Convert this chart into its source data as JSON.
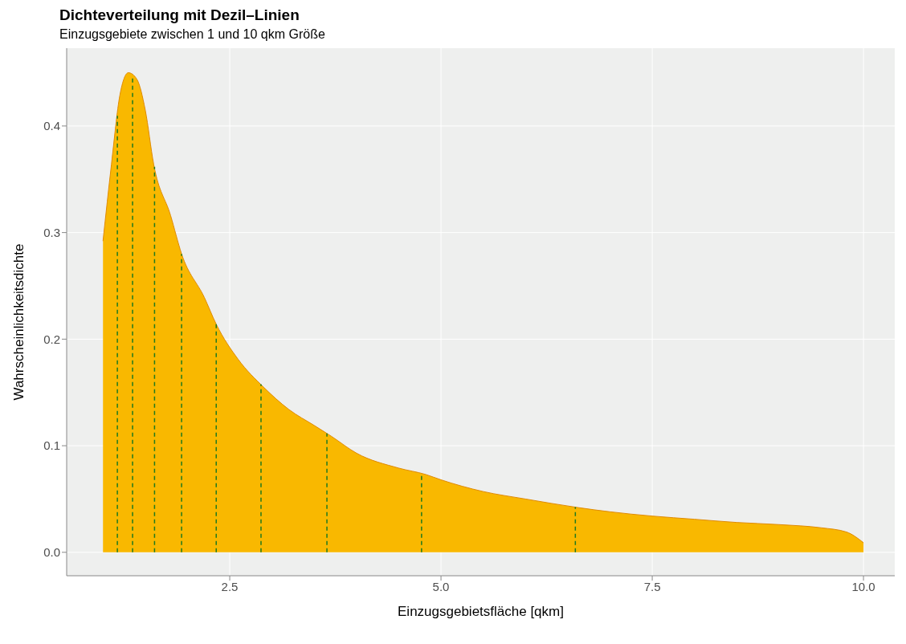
{
  "chart_data": {
    "type": "area",
    "title": "Dichteverteilung mit Dezil–Linien",
    "subtitle": "Einzugsgebiete zwischen 1 und 10 qkm Größe",
    "xlabel": "Einzugsgebietsfläche [qkm]",
    "ylabel": "Wahrscheinlichkeitsdichte",
    "x": [
      1.0,
      1.1,
      1.2,
      1.3,
      1.4,
      1.5,
      1.6,
      1.8,
      1.93,
      2.2,
      2.34,
      2.6,
      2.9,
      3.2,
      3.5,
      3.7,
      4.0,
      4.5,
      4.82,
      5.0,
      5.5,
      6.0,
      6.62,
      7.0,
      7.5,
      8.0,
      8.5,
      9.0,
      9.5,
      9.8,
      10.0
    ],
    "series": [
      {
        "color": "#f9b800",
        "values": [
          0.292,
          0.364,
          0.429,
          0.45,
          0.444,
          0.415,
          0.364,
          0.316,
          0.28,
          0.239,
          0.214,
          0.181,
          0.155,
          0.134,
          0.119,
          0.109,
          0.093,
          0.079,
          0.073,
          0.068,
          0.057,
          0.05,
          0.042,
          0.038,
          0.034,
          0.031,
          0.028,
          0.026,
          0.023,
          0.019,
          0.009
        ]
      }
    ],
    "xlim": [
      0.57,
      10.37
    ],
    "ylim": [
      -0.022,
      0.473
    ],
    "xticks": [
      {
        "value": 2.5,
        "label": "2.5"
      },
      {
        "value": 5,
        "label": "5.0"
      },
      {
        "value": 7.5,
        "label": "7.5"
      },
      {
        "value": 10,
        "label": "10.0"
      }
    ],
    "yticks": [
      {
        "value": 0,
        "label": "0.0"
      },
      {
        "value": 0.1,
        "label": "0.1"
      },
      {
        "value": 0.2,
        "label": "0.2"
      },
      {
        "value": 0.3,
        "label": "0.3"
      },
      {
        "value": 0.4,
        "label": "0.4"
      }
    ],
    "ref_lines": [
      {
        "axis": "x",
        "value": 1.17,
        "color": "#1f7a1f",
        "line_style": "dashed"
      },
      {
        "axis": "x",
        "value": 1.35,
        "color": "#1f7a1f",
        "line_style": "dashed"
      },
      {
        "axis": "x",
        "value": 1.61,
        "color": "#1f7a1f",
        "line_style": "dashed"
      },
      {
        "axis": "x",
        "value": 1.93,
        "color": "#1f7a1f",
        "line_style": "dashed"
      },
      {
        "axis": "x",
        "value": 2.34,
        "color": "#1f7a1f",
        "line_style": "dashed"
      },
      {
        "axis": "x",
        "value": 2.87,
        "color": "#1f7a1f",
        "line_style": "dashed"
      },
      {
        "axis": "x",
        "value": 3.65,
        "color": "#1f7a1f",
        "line_style": "dashed"
      },
      {
        "axis": "x",
        "value": 4.77,
        "color": "#1f7a1f",
        "line_style": "dashed"
      },
      {
        "axis": "x",
        "value": 6.59,
        "color": "#1f7a1f",
        "line_style": "dashed"
      }
    ],
    "grid": true,
    "legend": false
  }
}
